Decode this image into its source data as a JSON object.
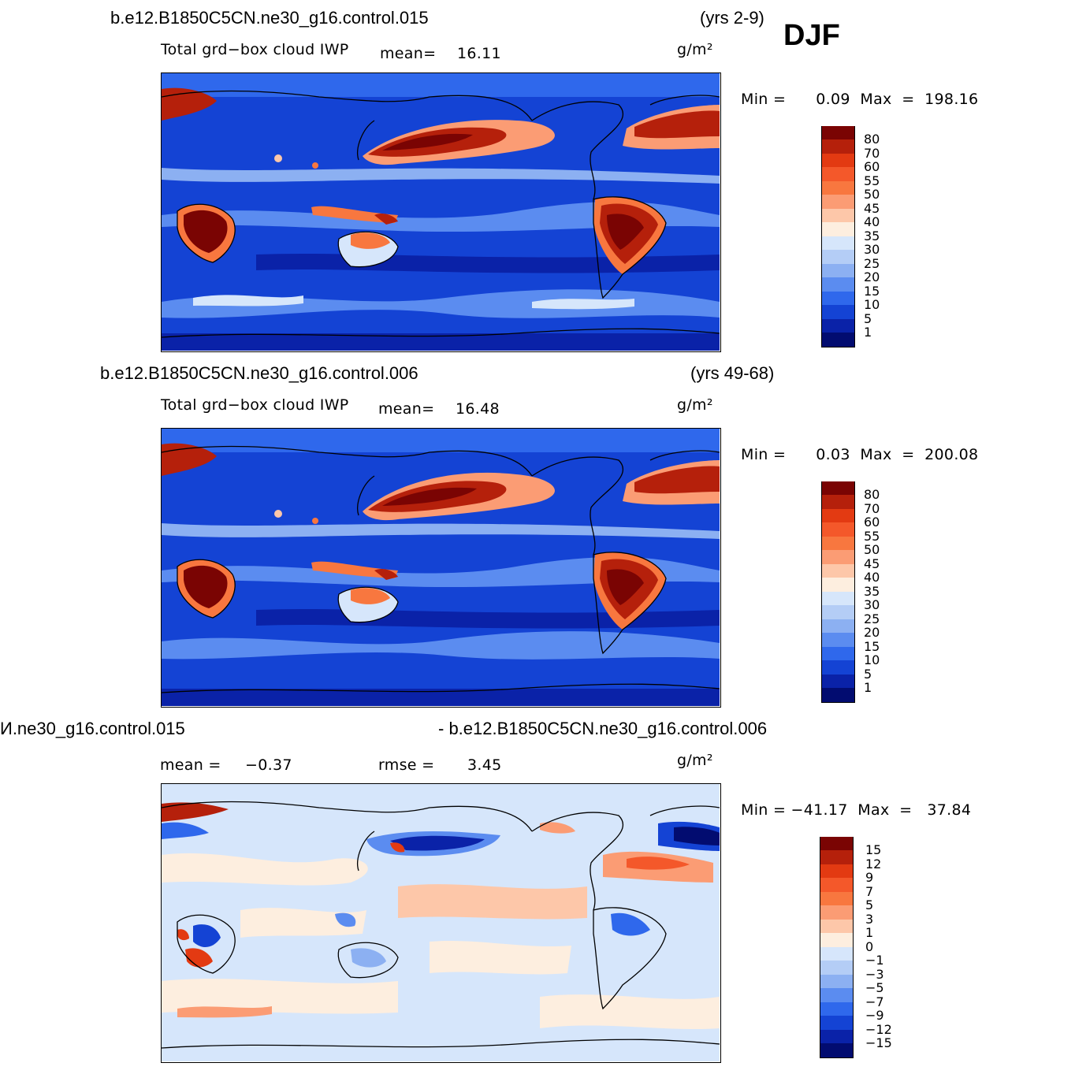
{
  "season": "DJF",
  "units": "g/m²",
  "panels": [
    {
      "case": "b.e12.B1850C5CN.ne30_g16.control.015",
      "years": "(yrs 2-9)",
      "variable": "Total grd−box cloud IWP",
      "mean_label": "mean=",
      "mean_value": "16.11",
      "minmax": "Min =      0.09  Max  =  198.16",
      "levels": [
        "80",
        "70",
        "60",
        "55",
        "50",
        "45",
        "40",
        "35",
        "30",
        "25",
        "20",
        "15",
        "10",
        "5",
        "1"
      ]
    },
    {
      "case": "b.e12.B1850C5CN.ne30_g16.control.006",
      "years": "(yrs 49-68)",
      "variable": "Total grd−box cloud IWP",
      "mean_label": "mean=",
      "mean_value": "16.48",
      "minmax": "Min =      0.03  Max  =  200.08",
      "levels": [
        "80",
        "70",
        "60",
        "55",
        "50",
        "45",
        "40",
        "35",
        "30",
        "25",
        "20",
        "15",
        "10",
        "5",
        "1"
      ]
    },
    {
      "case_left": "И.ne30_g16.control.015",
      "case_right": "- b.e12.B1850C5CN.ne30_g16.control.006",
      "mean_label": "mean =",
      "mean_value": "−0.37",
      "rmse_label": "rmse =",
      "rmse_value": "3.45",
      "minmax": "Min = −41.17  Max  =   37.84",
      "levels": [
        "15",
        "12",
        "9",
        "7",
        "5",
        "3",
        "1",
        "0",
        "−1",
        "−3",
        "−5",
        "−7",
        "−9",
        "−12",
        "−15"
      ]
    }
  ],
  "colors": {
    "iwp": [
      "#7a0403",
      "#b5200b",
      "#e33a12",
      "#f4582a",
      "#f8773f",
      "#fb9c74",
      "#fdc7a9",
      "#fdeedf",
      "#d6e6fb",
      "#b4cdf6",
      "#8cb0f2",
      "#5b8cf0",
      "#2f68ec",
      "#1443d4",
      "#0a22a8",
      "#020c70"
    ],
    "diff": [
      "#7a0403",
      "#b5200b",
      "#e33a12",
      "#f4582a",
      "#f8773f",
      "#fb9c74",
      "#fdc7a9",
      "#fdeedf",
      "#d6e6fb",
      "#b4cdf6",
      "#8cb0f2",
      "#5b8cf0",
      "#2f68ec",
      "#1443d4",
      "#0a22a8",
      "#020c70"
    ]
  }
}
